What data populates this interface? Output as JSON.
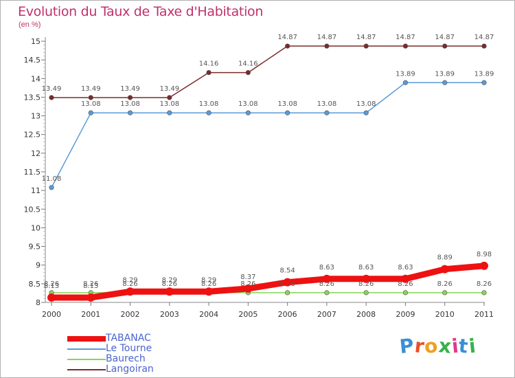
{
  "title": "Evolution du Taux de Taxe d'Habitation",
  "unit_label": "(en %)",
  "logo_text": "Proxiti",
  "chart_data": {
    "type": "line",
    "x": [
      "2000",
      "2001",
      "2002",
      "2003",
      "2004",
      "2005",
      "2006",
      "2007",
      "2008",
      "2009",
      "2010",
      "2011"
    ],
    "ylim": [
      8,
      15
    ],
    "yticks": [
      "8",
      "8.5",
      "9",
      "9.5",
      "10",
      "10.5",
      "11",
      "11.5",
      "12",
      "12.5",
      "13",
      "13.5",
      "14",
      "14.5",
      "15"
    ],
    "grid": false,
    "legend_placement": "bottom-left",
    "series": [
      {
        "name": "TABANAC",
        "color": "#ee1111",
        "values": [
          8.13,
          8.13,
          8.29,
          8.29,
          8.29,
          8.37,
          8.54,
          8.63,
          8.63,
          8.63,
          8.89,
          8.98
        ],
        "labels": [
          "8.13",
          "8.13",
          "8.29",
          "8.29",
          "8.29",
          "8.37",
          "8.54",
          "8.63",
          "8.63",
          "8.63",
          "8.89",
          "8.98"
        ]
      },
      {
        "name": "Le Tourne",
        "color": "#5a9ad5",
        "values": [
          11.08,
          13.08,
          13.08,
          13.08,
          13.08,
          13.08,
          13.08,
          13.08,
          13.08,
          13.89,
          13.89,
          13.89
        ],
        "labels": [
          "11.08",
          "13.08",
          "13.08",
          "13.08",
          "13.08",
          "13.08",
          "13.08",
          "13.08",
          "13.08",
          "13.89",
          "13.89",
          "13.89"
        ]
      },
      {
        "name": "Baurech",
        "color": "#88d455",
        "values": [
          8.26,
          8.26,
          8.26,
          8.26,
          8.26,
          8.26,
          8.26,
          8.26,
          8.26,
          8.26,
          8.26,
          8.26
        ],
        "labels": [
          "8.26",
          "8.26",
          "8.26",
          "8.26",
          "8.26",
          "8.26",
          "8.26",
          "8.26",
          "8.26",
          "8.26",
          "8.26",
          "8.26"
        ]
      },
      {
        "name": "Langoiran",
        "color": "#7a2a2a",
        "values": [
          13.49,
          13.49,
          13.49,
          13.49,
          14.16,
          14.16,
          14.87,
          14.87,
          14.87,
          14.87,
          14.87,
          14.87
        ],
        "labels": [
          "13.49",
          "13.49",
          "13.49",
          "13.49",
          "14.16",
          "14.16",
          "14.87",
          "14.87",
          "14.87",
          "14.87",
          "14.87",
          "14.87"
        ]
      }
    ]
  }
}
